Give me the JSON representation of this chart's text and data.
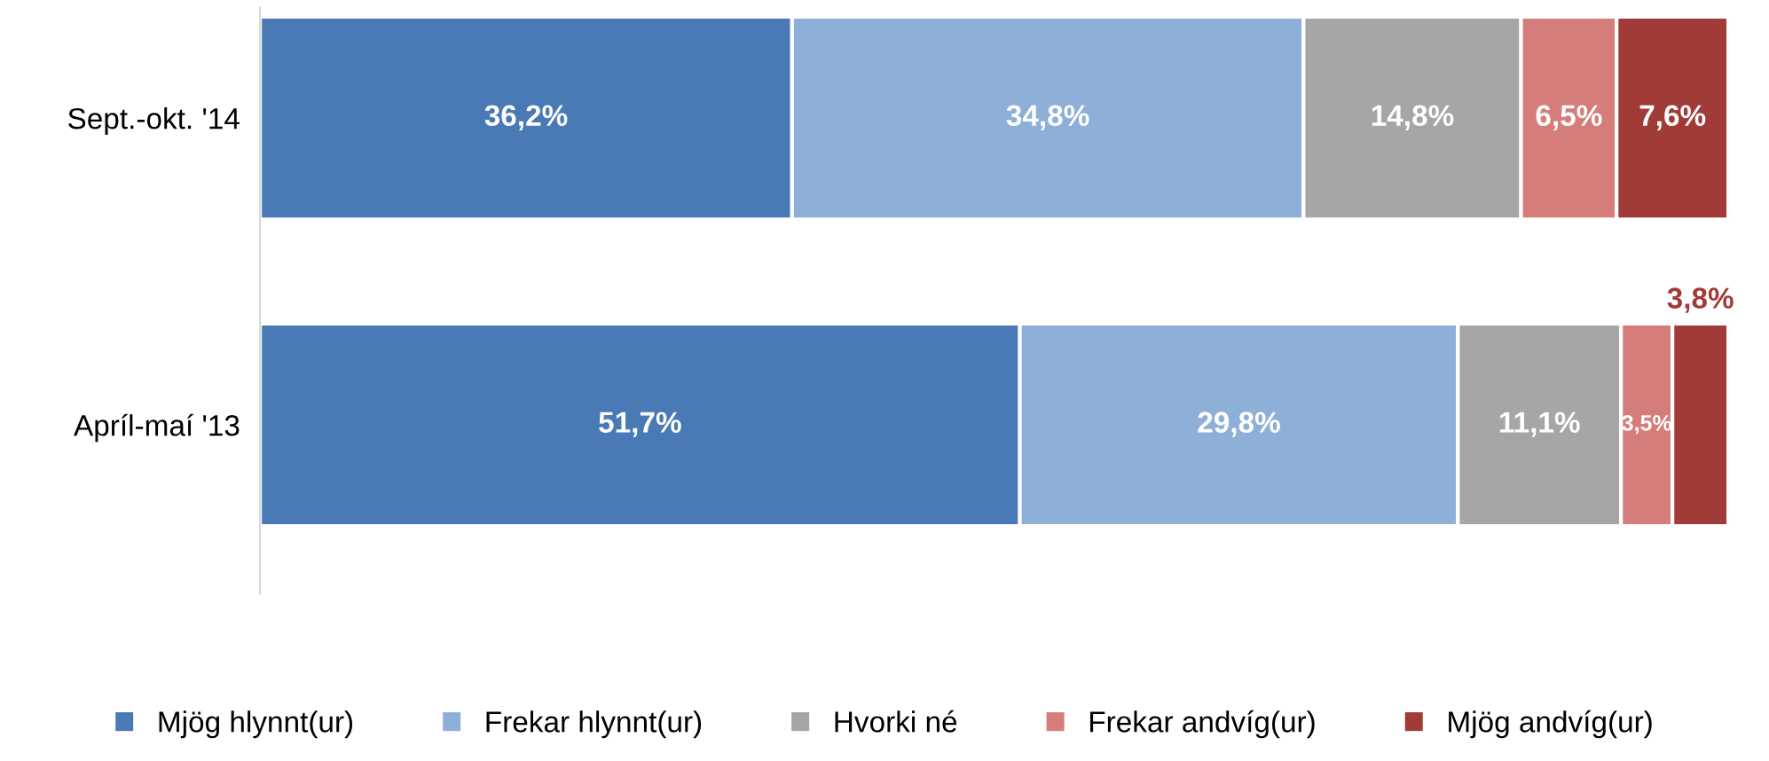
{
  "chart_data": {
    "type": "bar",
    "orientation": "horizontal",
    "stacked": true,
    "legend": "bottom",
    "categories": [
      "Sept.-okt. '14",
      "Apríl-maí '13"
    ],
    "series": [
      {
        "name": "Mjög hlynnt(ur)",
        "color": "#4a7ab5",
        "values": [
          36.2,
          51.7
        ],
        "value_labels": [
          "36,2%",
          "51,7%"
        ]
      },
      {
        "name": "Frekar hlynnt(ur)",
        "color": "#8eb0d8",
        "values": [
          34.8,
          29.8
        ],
        "value_labels": [
          "34,8%",
          "29,8%"
        ]
      },
      {
        "name": "Hvorki né",
        "color": "#a6a6a6",
        "values": [
          14.8,
          11.1
        ],
        "value_labels": [
          "14,8%",
          "11,1%"
        ]
      },
      {
        "name": "Frekar andvíg(ur)",
        "color": "#d47d7a",
        "values": [
          6.5,
          3.5
        ],
        "value_labels": [
          "6,5%",
          "3,5%"
        ]
      },
      {
        "name": "Mjög andvíg(ur)",
        "color": "#a03b37",
        "values": [
          7.6,
          3.8
        ],
        "value_labels": [
          "7,6%",
          "3,8%"
        ]
      }
    ]
  }
}
